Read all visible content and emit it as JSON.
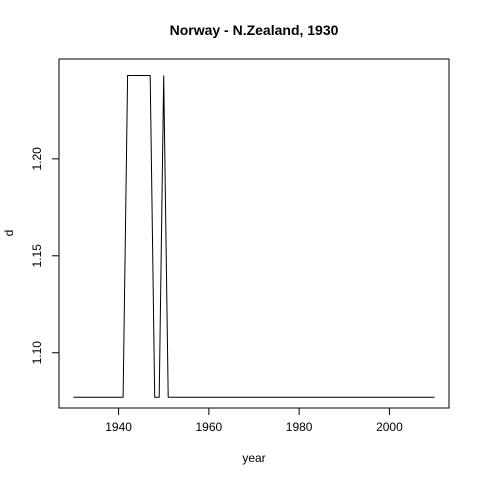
{
  "chart_data": {
    "type": "line",
    "title": "Norway - N.Zealand, 1930",
    "xlabel": "year",
    "ylabel": "d",
    "xlim": [
      1926.8,
      2013.2
    ],
    "ylim": [
      1.0715,
      1.2515
    ],
    "xticks": [
      1940,
      1960,
      1980,
      2000
    ],
    "yticks": [
      1.1,
      1.15,
      1.2
    ],
    "ytick_labels": [
      "1.10",
      "1.15",
      "1.20"
    ],
    "grid": false,
    "series": [
      {
        "x": [
          1930,
          1941,
          1942,
          1947,
          1948,
          1949,
          1950,
          1951,
          2010
        ],
        "y": [
          1.077,
          1.077,
          1.243,
          1.243,
          1.077,
          1.077,
          1.243,
          1.077,
          1.077
        ]
      }
    ]
  }
}
